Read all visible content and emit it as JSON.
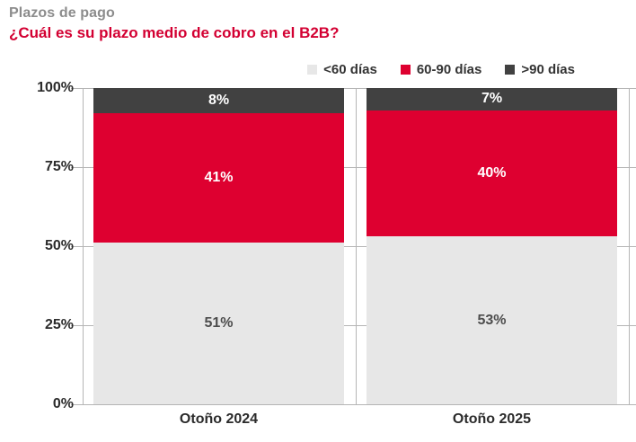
{
  "header": {
    "kicker": "Plazos de pago",
    "question": "¿Cuál es su plazo medio de cobro en el B2B?"
  },
  "colors": {
    "brand_red": "#de0030",
    "dark_gray": "#414141",
    "light_gray": "#e7e7e7",
    "kicker_gray": "#8c8c8c",
    "axis_line": "#b5b5b5",
    "axis_text": "#2b2b2b",
    "label_on_light": "#4d4d4d",
    "label_on_dark": "#ffffff"
  },
  "chart_data": {
    "type": "bar",
    "stacked": true,
    "unit": "%",
    "title": "Plazos de pago",
    "subtitle": "¿Cuál es su plazo medio de cobro en el B2B?",
    "categories": [
      "Otoño 2024",
      "Otoño 2025"
    ],
    "series": [
      {
        "name": "<60 días",
        "color": "#e7e7e7",
        "label_color": "#4d4d4d",
        "values": [
          51,
          53
        ]
      },
      {
        "name": "60-90 días",
        "color": "#de0030",
        "label_color": "#ffffff",
        "values": [
          41,
          40
        ]
      },
      {
        "name": ">90 días",
        "color": "#414141",
        "label_color": "#ffffff",
        "values": [
          8,
          7
        ]
      }
    ],
    "ylim": [
      0,
      100
    ],
    "yticks": [
      {
        "value": 100,
        "label": "100%"
      },
      {
        "value": 75,
        "label": "75%"
      },
      {
        "value": 50,
        "label": "50%"
      },
      {
        "value": 25,
        "label": "25%"
      },
      {
        "value": 0,
        "label": "0%"
      }
    ],
    "legend_position": "top-right",
    "value_labels": true,
    "grid": "tick-crosses-on-panel-axes"
  }
}
